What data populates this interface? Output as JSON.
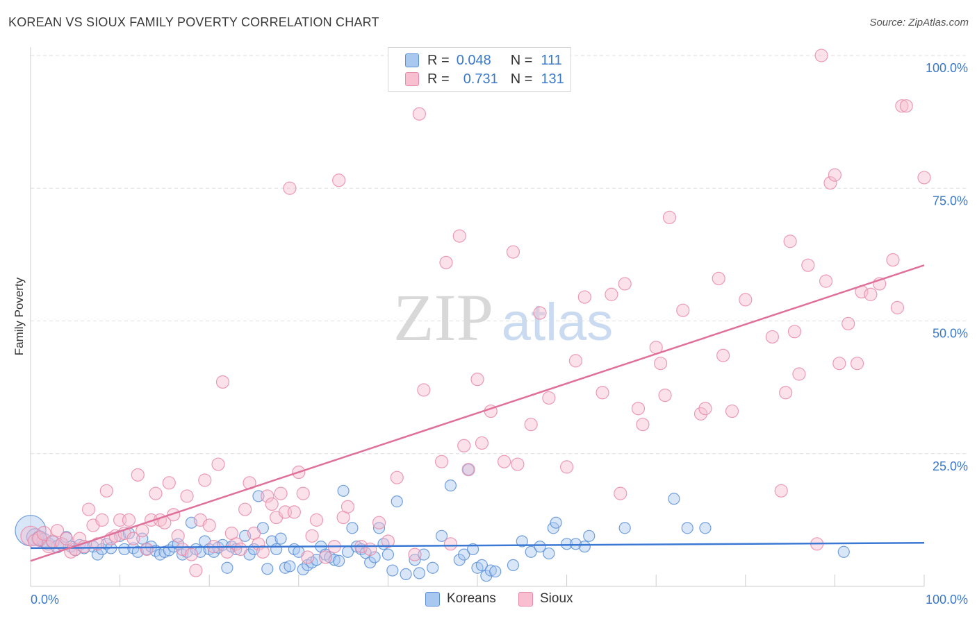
{
  "title": "KOREAN VS SIOUX FAMILY POVERTY CORRELATION CHART",
  "source": "Source: ZipAtlas.com",
  "watermark": {
    "zip": "ZIP",
    "atlas": "atlas"
  },
  "legend": {
    "rows": [
      {
        "r_label": "R =",
        "r_value": "0.048",
        "n_label": "N =",
        "n_value": "111"
      },
      {
        "r_label": "R =",
        "r_value": "0.731",
        "n_label": "N =",
        "n_value": "131"
      }
    ]
  },
  "bottom_legend": [
    {
      "label": "Koreans"
    },
    {
      "label": "Sioux"
    }
  ],
  "colors": {
    "korean_fill": "#a9c8ef",
    "korean_stroke": "#5b8fd6",
    "korean_line": "#3a78d4",
    "sioux_fill": "#f7bfd0",
    "sioux_stroke": "#e88aa8",
    "sioux_line": "#e0709a",
    "grid": "#dddddd",
    "axis_label": "#3a78c9"
  },
  "chart_data": {
    "type": "scatter",
    "title": "KOREAN VS SIOUX FAMILY POVERTY CORRELATION CHART",
    "xlabel": "",
    "ylabel": "Family Poverty",
    "xlim": [
      0,
      100
    ],
    "ylim": [
      0,
      100
    ],
    "x_tick_labels": [
      "0.0%",
      "100.0%"
    ],
    "y_tick_labels": [
      "25.0%",
      "50.0%",
      "75.0%",
      "100.0%"
    ],
    "y_ticks": [
      25,
      50,
      75,
      100
    ],
    "grid": true,
    "legend_position": "top-center",
    "series": [
      {
        "name": "Koreans",
        "R": 0.048,
        "N": 111,
        "trend": {
          "x": [
            0,
            100
          ],
          "y": [
            7.2,
            8.2
          ]
        },
        "points": [
          [
            0,
            10.5,
            22
          ],
          [
            0.5,
            9.3,
            12
          ],
          [
            1,
            9,
            11
          ],
          [
            1.5,
            8.7,
            10
          ],
          [
            2,
            8,
            9
          ],
          [
            2.5,
            8.3,
            9
          ],
          [
            3,
            7.5,
            9
          ],
          [
            3.5,
            8,
            9
          ],
          [
            4,
            9.3,
            8
          ],
          [
            4.5,
            7.5,
            8
          ],
          [
            5,
            6.8,
            8
          ],
          [
            5.5,
            7.8,
            8
          ],
          [
            6,
            7.2,
            8
          ],
          [
            7,
            7.5,
            8
          ],
          [
            7.5,
            6,
            8
          ],
          [
            8,
            7,
            8
          ],
          [
            8.5,
            8,
            8
          ],
          [
            9,
            7.2,
            8
          ],
          [
            10,
            9.5,
            8
          ],
          [
            10.5,
            7,
            8
          ],
          [
            11,
            10,
            8
          ],
          [
            11.5,
            7.2,
            8
          ],
          [
            12,
            6.5,
            8
          ],
          [
            12.5,
            9,
            8
          ],
          [
            13,
            7,
            8
          ],
          [
            13.5,
            7.5,
            8
          ],
          [
            14,
            6.7,
            8
          ],
          [
            14.5,
            6,
            8
          ],
          [
            15,
            6.5,
            8
          ],
          [
            15.5,
            6.8,
            8
          ],
          [
            16,
            7.5,
            8
          ],
          [
            16.5,
            8,
            8
          ],
          [
            17,
            6,
            8
          ],
          [
            17.5,
            6.5,
            8
          ],
          [
            18,
            12,
            8
          ],
          [
            18.5,
            7,
            8
          ],
          [
            19,
            6.5,
            8
          ],
          [
            19.5,
            8.5,
            8
          ],
          [
            20,
            7,
            8
          ],
          [
            20.5,
            6.5,
            8
          ],
          [
            21,
            7.3,
            8
          ],
          [
            21.5,
            7.8,
            8
          ],
          [
            22,
            3.5,
            8
          ],
          [
            22.5,
            7.5,
            8
          ],
          [
            23,
            7,
            8
          ],
          [
            24,
            9.5,
            8
          ],
          [
            24.5,
            6,
            8
          ],
          [
            25,
            7,
            8
          ],
          [
            25.5,
            17,
            8
          ],
          [
            26,
            11,
            8
          ],
          [
            26.5,
            3.3,
            8
          ],
          [
            27,
            8.5,
            8
          ],
          [
            27.5,
            7,
            8
          ],
          [
            28,
            9,
            8
          ],
          [
            28.5,
            3.5,
            8
          ],
          [
            29,
            3.8,
            8
          ],
          [
            29.5,
            7,
            8
          ],
          [
            30,
            6.5,
            8
          ],
          [
            30.5,
            3.2,
            8
          ],
          [
            31,
            4,
            8
          ],
          [
            31.5,
            4.5,
            8
          ],
          [
            32,
            5,
            8
          ],
          [
            32.5,
            7.5,
            8
          ],
          [
            33,
            6,
            8
          ],
          [
            33.5,
            5.5,
            8
          ],
          [
            34,
            5,
            8
          ],
          [
            34.5,
            4.8,
            8
          ],
          [
            35,
            18,
            8
          ],
          [
            35.5,
            6.5,
            8
          ],
          [
            36,
            11,
            8
          ],
          [
            36.5,
            7.5,
            8
          ],
          [
            37,
            7,
            8
          ],
          [
            37.5,
            6.3,
            8
          ],
          [
            38,
            4.5,
            8
          ],
          [
            38.5,
            5.5,
            8
          ],
          [
            39,
            11,
            8
          ],
          [
            39.5,
            8,
            8
          ],
          [
            40,
            6,
            8
          ],
          [
            40.5,
            3,
            8
          ],
          [
            41,
            16,
            8
          ],
          [
            42,
            2.3,
            8
          ],
          [
            43,
            5,
            8
          ],
          [
            43.5,
            2.5,
            8
          ],
          [
            44,
            6,
            8
          ],
          [
            45,
            3.5,
            8
          ],
          [
            46,
            9.5,
            8
          ],
          [
            47,
            19,
            8
          ],
          [
            48,
            5,
            8
          ],
          [
            48.5,
            6,
            8
          ],
          [
            49,
            22,
            8
          ],
          [
            49.5,
            7,
            8
          ],
          [
            50,
            3.5,
            8
          ],
          [
            50.5,
            4,
            8
          ],
          [
            51,
            2,
            8
          ],
          [
            51.5,
            3,
            8
          ],
          [
            52,
            2.8,
            8
          ],
          [
            54,
            4,
            8
          ],
          [
            55,
            8.5,
            8
          ],
          [
            56,
            6.5,
            8
          ],
          [
            57,
            7.5,
            8
          ],
          [
            58,
            6.2,
            8
          ],
          [
            58.5,
            11,
            8
          ],
          [
            58.8,
            12,
            8
          ],
          [
            60,
            8,
            8
          ],
          [
            61,
            8,
            8
          ],
          [
            62,
            7.5,
            8
          ],
          [
            62.5,
            9.5,
            8
          ],
          [
            66.5,
            11,
            8
          ],
          [
            72,
            16.5,
            8
          ],
          [
            73.5,
            11,
            8
          ],
          [
            75.5,
            11,
            8
          ],
          [
            91,
            6.5,
            8
          ]
        ]
      },
      {
        "name": "Sioux",
        "R": 0.731,
        "N": 131,
        "trend": {
          "x": [
            0,
            100
          ],
          "y": [
            4.8,
            60.5
          ]
        },
        "points": [
          [
            0,
            9.5,
            14
          ],
          [
            0.5,
            8.5,
            10
          ],
          [
            1,
            9,
            10
          ],
          [
            1.5,
            10,
            10
          ],
          [
            2,
            7.5,
            9
          ],
          [
            2.5,
            8.5,
            9
          ],
          [
            3,
            10.5,
            9
          ],
          [
            3.5,
            8,
            9
          ],
          [
            4,
            9,
            9
          ],
          [
            4.5,
            6.5,
            9
          ],
          [
            5,
            7,
            9
          ],
          [
            5.5,
            9,
            9
          ],
          [
            6,
            7.5,
            9
          ],
          [
            6.5,
            14.5,
            9
          ],
          [
            7,
            11.5,
            9
          ],
          [
            7.5,
            8,
            9
          ],
          [
            8,
            12.5,
            9
          ],
          [
            8.5,
            18,
            9
          ],
          [
            9,
            9,
            9
          ],
          [
            9.5,
            9.5,
            9
          ],
          [
            10,
            12.5,
            9
          ],
          [
            10.5,
            10,
            9
          ],
          [
            11,
            12.5,
            9
          ],
          [
            11.5,
            9,
            9
          ],
          [
            12,
            21,
            9
          ],
          [
            12.5,
            10.5,
            9
          ],
          [
            13,
            7,
            9
          ],
          [
            13.5,
            12.5,
            9
          ],
          [
            14,
            17.5,
            9
          ],
          [
            14.5,
            12.5,
            9
          ],
          [
            15,
            12,
            9
          ],
          [
            15.5,
            19.5,
            9
          ],
          [
            16,
            13.5,
            9
          ],
          [
            16.5,
            9.5,
            9
          ],
          [
            17,
            7,
            9
          ],
          [
            17.5,
            17,
            9
          ],
          [
            18,
            6,
            9
          ],
          [
            18.5,
            3,
            9
          ],
          [
            19,
            12.5,
            9
          ],
          [
            19.5,
            20,
            9
          ],
          [
            20,
            11.5,
            9
          ],
          [
            20.5,
            7.5,
            9
          ],
          [
            21,
            23,
            9
          ],
          [
            21.5,
            38.5,
            9
          ],
          [
            22,
            6.5,
            9
          ],
          [
            22.5,
            10,
            9
          ],
          [
            23,
            8,
            9
          ],
          [
            23.5,
            7,
            9
          ],
          [
            24,
            14.5,
            9
          ],
          [
            24.5,
            19.5,
            9
          ],
          [
            25,
            10,
            9
          ],
          [
            25.5,
            8,
            9
          ],
          [
            26,
            6.5,
            9
          ],
          [
            26.5,
            17,
            9
          ],
          [
            27,
            15.5,
            9
          ],
          [
            27.5,
            13,
            9
          ],
          [
            28,
            17.5,
            9
          ],
          [
            28.5,
            14,
            9
          ],
          [
            29,
            75,
            9
          ],
          [
            29.5,
            14,
            9
          ],
          [
            30,
            21.5,
            9
          ],
          [
            30.5,
            17.5,
            9
          ],
          [
            31,
            5.5,
            9
          ],
          [
            31.5,
            9.5,
            9
          ],
          [
            32,
            12.5,
            9
          ],
          [
            33,
            5.5,
            9
          ],
          [
            34,
            7.5,
            9
          ],
          [
            34.5,
            76.5,
            9
          ],
          [
            35,
            13,
            9
          ],
          [
            35.5,
            15,
            9
          ],
          [
            37,
            7.5,
            9
          ],
          [
            38,
            7,
            9
          ],
          [
            39,
            12,
            9
          ],
          [
            40,
            8.5,
            9
          ],
          [
            41,
            20.5,
            9
          ],
          [
            43,
            6,
            9
          ],
          [
            43.5,
            89,
            9
          ],
          [
            44,
            37,
            9
          ],
          [
            46,
            23.5,
            9
          ],
          [
            46.5,
            61,
            9
          ],
          [
            47,
            8,
            9
          ],
          [
            48,
            66,
            9
          ],
          [
            48.5,
            26.5,
            9
          ],
          [
            49,
            22,
            9
          ],
          [
            50,
            39,
            9
          ],
          [
            50.5,
            27,
            9
          ],
          [
            51.5,
            33,
            9
          ],
          [
            53,
            23.5,
            9
          ],
          [
            54,
            63,
            9
          ],
          [
            54.5,
            23,
            9
          ],
          [
            56,
            30.5,
            9
          ],
          [
            57,
            51.5,
            9
          ],
          [
            58,
            35.5,
            9
          ],
          [
            60,
            22.5,
            9
          ],
          [
            61,
            42.5,
            9
          ],
          [
            62,
            54.5,
            9
          ],
          [
            64,
            36.5,
            9
          ],
          [
            65,
            55,
            9
          ],
          [
            66,
            17.5,
            9
          ],
          [
            66.5,
            57,
            9
          ],
          [
            68,
            33.5,
            9
          ],
          [
            68.5,
            30.5,
            9
          ],
          [
            70,
            45,
            9
          ],
          [
            70.5,
            42,
            9
          ],
          [
            71,
            36,
            9
          ],
          [
            71.5,
            69.5,
            9
          ],
          [
            73,
            52,
            9
          ],
          [
            75,
            32.5,
            9
          ],
          [
            75.5,
            33.5,
            9
          ],
          [
            77,
            58,
            9
          ],
          [
            77.5,
            43.5,
            9
          ],
          [
            78.5,
            33,
            9
          ],
          [
            80,
            54,
            9
          ],
          [
            83,
            47,
            9
          ],
          [
            84,
            18,
            9
          ],
          [
            84.5,
            36.5,
            9
          ],
          [
            85,
            65,
            9
          ],
          [
            85.5,
            48,
            9
          ],
          [
            86,
            40,
            9
          ],
          [
            87,
            60.5,
            9
          ],
          [
            88,
            8,
            9
          ],
          [
            88.5,
            100,
            9
          ],
          [
            89,
            57.5,
            9
          ],
          [
            89.5,
            76,
            9
          ],
          [
            90,
            77.5,
            9
          ],
          [
            90.5,
            42,
            9
          ],
          [
            91.5,
            49.5,
            9
          ],
          [
            92.5,
            42,
            9
          ],
          [
            93,
            55.5,
            9
          ],
          [
            94,
            55,
            9
          ],
          [
            95,
            57,
            9
          ],
          [
            96.5,
            61.5,
            9
          ],
          [
            97,
            52.5,
            9
          ],
          [
            97.5,
            90.5,
            9
          ],
          [
            98,
            90.5,
            9
          ],
          [
            100,
            77,
            9
          ]
        ]
      }
    ]
  }
}
